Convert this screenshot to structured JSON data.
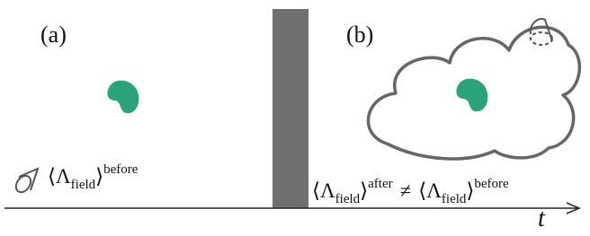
{
  "panels": [
    {
      "label": "(a)",
      "formula": {
        "base": "⟨Λ",
        "sub": "field",
        "close": "⟩",
        "sup": "before"
      }
    },
    {
      "label": "(b)",
      "left": {
        "base": "⟨Λ",
        "sub": "field",
        "close": "⟩",
        "sup": "after"
      },
      "relation": "≠",
      "right": {
        "base": "⟨Λ",
        "sub": "field",
        "close": "⟩",
        "sup": "before"
      }
    }
  ],
  "axis": {
    "label": "t"
  }
}
